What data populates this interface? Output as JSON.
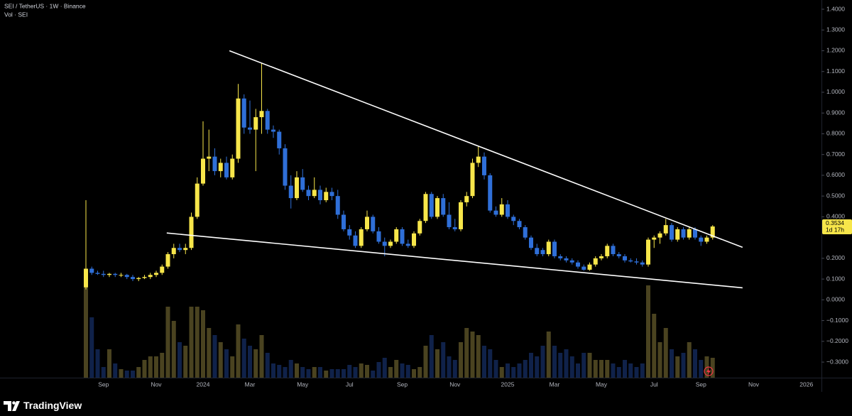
{
  "header": {
    "symbol_line": "SEI / TetherUS · 1W · Binance",
    "volume_line": "Vol · SEI"
  },
  "brand": "TradingView",
  "chart_data": {
    "type": "candlestick",
    "categories": [
      null,
      null,
      null,
      "Sep",
      null,
      null,
      null,
      null,
      null,
      null,
      null,
      null,
      "Nov",
      null,
      null,
      null,
      null,
      null,
      null,
      null,
      "2024",
      null,
      null,
      null,
      null,
      null,
      null,
      null,
      "Mar",
      null,
      null,
      null,
      null,
      null,
      null,
      null,
      null,
      "May",
      null,
      null,
      null,
      null,
      null,
      null,
      null,
      "Jul",
      null,
      null,
      null,
      null,
      null,
      null,
      null,
      null,
      "Sep",
      null,
      null,
      null,
      null,
      null,
      null,
      null,
      null,
      "Nov",
      null,
      null,
      null,
      null,
      null,
      null,
      null,
      null,
      "2025",
      null,
      null,
      null,
      null,
      null,
      null,
      null,
      "Mar",
      null,
      null,
      null,
      null,
      null,
      null,
      null,
      "May",
      null,
      null,
      null,
      null,
      null,
      null,
      null,
      null,
      "Jul",
      null,
      null,
      null,
      null,
      null,
      null,
      null,
      "Sep",
      null,
      null,
      null,
      null,
      null,
      null,
      null,
      null,
      "Nov",
      null,
      null,
      null,
      null,
      null,
      null,
      null,
      null,
      "2026",
      null,
      null
    ],
    "open": [
      0.06,
      0.15,
      0.13,
      0.125,
      0.12,
      0.125,
      0.12,
      0.12,
      0.11,
      0.1,
      0.105,
      0.11,
      0.12,
      0.13,
      0.16,
      0.22,
      0.25,
      0.24,
      0.25,
      0.4,
      0.56,
      0.68,
      0.69,
      0.62,
      0.66,
      0.59,
      0.68,
      0.97,
      0.83,
      0.82,
      0.88,
      0.91,
      0.82,
      0.81,
      0.73,
      0.55,
      0.49,
      0.59,
      0.53,
      0.5,
      0.53,
      0.48,
      0.52,
      0.5,
      0.41,
      0.34,
      0.31,
      0.26,
      0.34,
      0.4,
      0.33,
      0.28,
      0.26,
      0.28,
      0.34,
      0.27,
      0.26,
      0.32,
      0.38,
      0.51,
      0.4,
      0.49,
      0.41,
      0.35,
      0.34,
      0.47,
      0.5,
      0.66,
      0.69,
      0.6,
      0.43,
      0.41,
      0.46,
      0.4,
      0.38,
      0.35,
      0.3,
      0.25,
      0.24,
      0.22,
      0.28,
      0.21,
      0.2,
      0.19,
      0.18,
      0.16,
      0.145,
      0.17,
      0.2,
      0.21,
      0.26,
      0.22,
      0.21,
      0.19,
      0.185,
      0.18,
      0.17,
      0.29,
      0.3,
      0.32,
      0.36,
      0.29,
      0.34,
      0.3,
      0.34,
      0.3,
      0.28,
      0.3,
      null,
      null,
      null,
      null,
      null,
      null,
      null,
      null,
      null,
      null,
      null,
      null,
      null,
      null,
      null,
      null,
      null,
      null
    ],
    "high": [
      0.48,
      0.16,
      0.14,
      0.14,
      0.13,
      0.13,
      0.13,
      0.125,
      0.12,
      0.11,
      0.12,
      0.13,
      0.14,
      0.17,
      0.23,
      0.27,
      0.27,
      0.27,
      0.42,
      0.59,
      0.86,
      0.82,
      0.73,
      0.68,
      0.69,
      0.7,
      1.04,
      0.99,
      0.96,
      0.92,
      1.14,
      0.92,
      0.84,
      0.82,
      0.75,
      0.6,
      0.62,
      0.63,
      0.55,
      0.59,
      0.55,
      0.54,
      0.54,
      0.53,
      0.43,
      0.36,
      0.33,
      0.35,
      0.43,
      0.41,
      0.35,
      0.3,
      0.29,
      0.35,
      0.35,
      0.29,
      0.33,
      0.39,
      0.52,
      0.52,
      0.5,
      0.51,
      0.47,
      0.39,
      0.48,
      0.52,
      0.68,
      0.74,
      0.71,
      0.61,
      0.45,
      0.49,
      0.48,
      0.41,
      0.39,
      0.36,
      0.31,
      0.27,
      0.25,
      0.29,
      0.29,
      0.22,
      0.21,
      0.2,
      0.19,
      0.17,
      0.18,
      0.21,
      0.22,
      0.27,
      0.27,
      0.23,
      0.22,
      0.2,
      0.2,
      0.19,
      0.3,
      0.31,
      0.33,
      0.39,
      0.37,
      0.35,
      0.35,
      0.35,
      0.35,
      0.31,
      0.31,
      0.36,
      null,
      null,
      null,
      null,
      null,
      null,
      null,
      null,
      null,
      null,
      null,
      null,
      null,
      null,
      null,
      null,
      null,
      null
    ],
    "low": [
      0.05,
      0.12,
      0.12,
      0.11,
      0.11,
      0.11,
      0.11,
      0.1,
      0.09,
      0.09,
      0.1,
      0.1,
      0.11,
      0.12,
      0.15,
      0.2,
      0.23,
      0.22,
      0.24,
      0.39,
      0.55,
      0.62,
      0.6,
      0.59,
      0.58,
      0.58,
      0.66,
      0.8,
      0.8,
      0.62,
      0.8,
      0.8,
      0.78,
      0.7,
      0.53,
      0.44,
      0.48,
      0.52,
      0.48,
      0.49,
      0.46,
      0.47,
      0.48,
      0.39,
      0.33,
      0.29,
      0.25,
      0.25,
      0.33,
      0.32,
      0.27,
      0.21,
      0.25,
      0.27,
      0.26,
      0.25,
      0.25,
      0.31,
      0.37,
      0.39,
      0.39,
      0.4,
      0.34,
      0.33,
      0.33,
      0.45,
      0.49,
      0.64,
      0.58,
      0.42,
      0.4,
      0.4,
      0.39,
      0.36,
      0.34,
      0.29,
      0.24,
      0.21,
      0.21,
      0.21,
      0.2,
      0.19,
      0.18,
      0.17,
      0.15,
      0.14,
      0.14,
      0.16,
      0.19,
      0.2,
      0.21,
      0.2,
      0.18,
      0.18,
      0.17,
      0.16,
      0.16,
      0.25,
      0.27,
      0.31,
      0.28,
      0.28,
      0.29,
      0.29,
      0.29,
      0.26,
      0.27,
      0.29,
      null,
      null,
      null,
      null,
      null,
      null,
      null,
      null,
      null,
      null,
      null,
      null,
      null,
      null,
      null,
      null,
      null,
      null
    ],
    "close": [
      0.15,
      0.13,
      0.125,
      0.12,
      0.125,
      0.12,
      0.12,
      0.11,
      0.1,
      0.105,
      0.11,
      0.12,
      0.13,
      0.16,
      0.22,
      0.25,
      0.24,
      0.25,
      0.4,
      0.56,
      0.68,
      0.69,
      0.62,
      0.66,
      0.59,
      0.68,
      0.97,
      0.83,
      0.82,
      0.88,
      0.91,
      0.82,
      0.81,
      0.73,
      0.55,
      0.49,
      0.59,
      0.53,
      0.5,
      0.53,
      0.48,
      0.52,
      0.5,
      0.41,
      0.34,
      0.31,
      0.26,
      0.34,
      0.4,
      0.33,
      0.28,
      0.26,
      0.28,
      0.34,
      0.27,
      0.26,
      0.32,
      0.38,
      0.51,
      0.4,
      0.49,
      0.41,
      0.35,
      0.34,
      0.47,
      0.5,
      0.66,
      0.69,
      0.6,
      0.43,
      0.41,
      0.46,
      0.4,
      0.38,
      0.35,
      0.3,
      0.25,
      0.22,
      0.22,
      0.28,
      0.21,
      0.2,
      0.19,
      0.18,
      0.16,
      0.145,
      0.17,
      0.2,
      0.21,
      0.26,
      0.22,
      0.21,
      0.19,
      0.185,
      0.18,
      0.17,
      0.29,
      0.3,
      0.32,
      0.36,
      0.29,
      0.34,
      0.3,
      0.34,
      0.3,
      0.28,
      0.3,
      0.3534,
      null,
      null,
      null,
      null,
      null,
      null,
      null,
      null,
      null,
      null,
      null,
      null,
      null,
      null,
      null,
      null,
      null,
      null
    ],
    "volume": [
      127,
      85,
      40,
      15,
      40,
      20,
      12,
      10,
      10,
      15,
      25,
      30,
      30,
      35,
      100,
      80,
      50,
      45,
      100,
      100,
      95,
      70,
      60,
      50,
      40,
      30,
      75,
      55,
      45,
      40,
      60,
      35,
      20,
      18,
      15,
      25,
      20,
      15,
      12,
      15,
      15,
      10,
      12,
      12,
      12,
      18,
      15,
      20,
      18,
      10,
      22,
      28,
      15,
      25,
      20,
      18,
      12,
      15,
      45,
      60,
      40,
      50,
      30,
      25,
      50,
      70,
      65,
      60,
      45,
      40,
      25,
      15,
      20,
      15,
      20,
      25,
      35,
      30,
      45,
      65,
      45,
      35,
      40,
      30,
      20,
      35,
      35,
      25,
      25,
      25,
      20,
      15,
      25,
      20,
      15,
      20,
      130,
      90,
      50,
      70,
      40,
      30,
      35,
      50,
      40,
      25,
      30,
      28,
      null,
      null,
      null,
      null,
      null,
      null,
      null,
      null,
      null,
      null,
      null,
      null,
      null,
      null,
      null,
      null,
      null,
      null
    ],
    "up_color": "#f7e64a",
    "down_color": "#2f6fd8",
    "volume_up_color": "#4a4320",
    "volume_down_color": "#10224a",
    "ylim": [
      -0.375,
      1.4445
    ],
    "yticks": [
      {
        "value": 1.4,
        "label": "1.4000"
      },
      {
        "value": 1.3,
        "label": "1.3000"
      },
      {
        "value": 1.2,
        "label": "1.2000"
      },
      {
        "value": 1.1,
        "label": "1.1000"
      },
      {
        "value": 1.0,
        "label": "1.0000"
      },
      {
        "value": 0.9,
        "label": "0.9000"
      },
      {
        "value": 0.8,
        "label": "0.8000"
      },
      {
        "value": 0.7,
        "label": "0.7000"
      },
      {
        "value": 0.6,
        "label": "0.6000"
      },
      {
        "value": 0.5,
        "label": "0.5000"
      },
      {
        "value": 0.4,
        "label": "0.4000"
      },
      {
        "value": 0.2,
        "label": "0.2000"
      },
      {
        "value": 0.1,
        "label": "0.1000"
      },
      {
        "value": 0,
        "label": "0.0000"
      },
      {
        "value": -0.1,
        "label": "−0.1000"
      },
      {
        "value": -0.2,
        "label": "−0.2000"
      },
      {
        "value": -0.3,
        "label": "−0.3000"
      }
    ],
    "grid": false,
    "price_label": 0.3534,
    "countdown": "1d 17h",
    "trendlines": [
      {
        "x": [
          24.5,
          112.1
        ],
        "y": [
          1.2,
          0.253
        ],
        "color": "#ffffff"
      },
      {
        "x": [
          13.8,
          112.1
        ],
        "y": [
          0.322,
          0.058
        ],
        "color": "#ffffff"
      }
    ]
  }
}
